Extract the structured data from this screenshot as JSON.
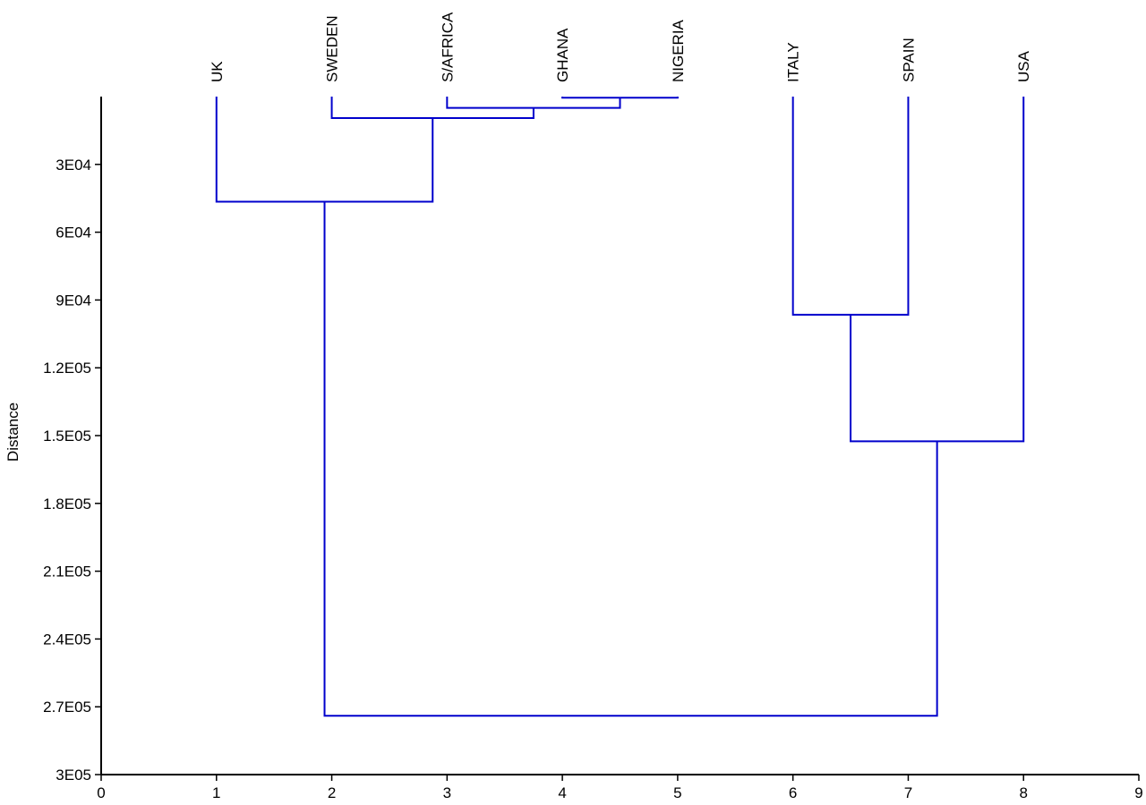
{
  "chart_data": {
    "type": "dendrogram",
    "title": "",
    "xlabel": "",
    "ylabel": "Distance",
    "xlim": [
      0,
      9
    ],
    "ylim": [
      0,
      300000
    ],
    "y_inverted": true,
    "x_ticks": [
      "0",
      "1",
      "2",
      "3",
      "4",
      "5",
      "6",
      "7",
      "8",
      "9"
    ],
    "y_ticks": [
      {
        "value": 30000,
        "label": "3E04"
      },
      {
        "value": 60000,
        "label": "6E04"
      },
      {
        "value": 90000,
        "label": "9E04"
      },
      {
        "value": 120000,
        "label": "1.2E05"
      },
      {
        "value": 150000,
        "label": "1.5E05"
      },
      {
        "value": 180000,
        "label": "1.8E05"
      },
      {
        "value": 210000,
        "label": "2.1E05"
      },
      {
        "value": 240000,
        "label": "2.4E05"
      },
      {
        "value": 270000,
        "label": "2.7E05"
      },
      {
        "value": 300000,
        "label": "3E05"
      }
    ],
    "leaves": [
      {
        "name": "UK",
        "x": 1
      },
      {
        "name": "SWEDEN",
        "x": 2
      },
      {
        "name": "S/AFRICA",
        "x": 3
      },
      {
        "name": "GHANA",
        "x": 4
      },
      {
        "name": "NIGERIA",
        "x": 5
      },
      {
        "name": "ITALY",
        "x": 6
      },
      {
        "name": "SPAIN",
        "x": 7
      },
      {
        "name": "USA",
        "x": 8
      }
    ],
    "merges": [
      {
        "left_x": 4,
        "left_h": 0,
        "right_x": 5,
        "right_h": 0,
        "height": 500,
        "mid_x": 4.5
      },
      {
        "left_x": 3,
        "left_h": 0,
        "right_x": 4.5,
        "right_h": 500,
        "height": 5000,
        "mid_x": 3.75
      },
      {
        "left_x": 2,
        "left_h": 0,
        "right_x": 3.75,
        "right_h": 5000,
        "height": 9500,
        "mid_x": 2.875
      },
      {
        "left_x": 1,
        "left_h": 0,
        "right_x": 2.875,
        "right_h": 9500,
        "height": 46500,
        "mid_x": 1.9375
      },
      {
        "left_x": 6,
        "left_h": 0,
        "right_x": 7,
        "right_h": 0,
        "height": 96500,
        "mid_x": 6.5
      },
      {
        "left_x": 6.5,
        "left_h": 96500,
        "right_x": 8,
        "right_h": 0,
        "height": 152500,
        "mid_x": 7.25
      },
      {
        "left_x": 1.9375,
        "left_h": 46500,
        "right_x": 7.25,
        "right_h": 152500,
        "height": 274000,
        "mid_x": 4.59375
      }
    ],
    "line_color": "#0000cc",
    "grid": false,
    "legend": "none"
  }
}
